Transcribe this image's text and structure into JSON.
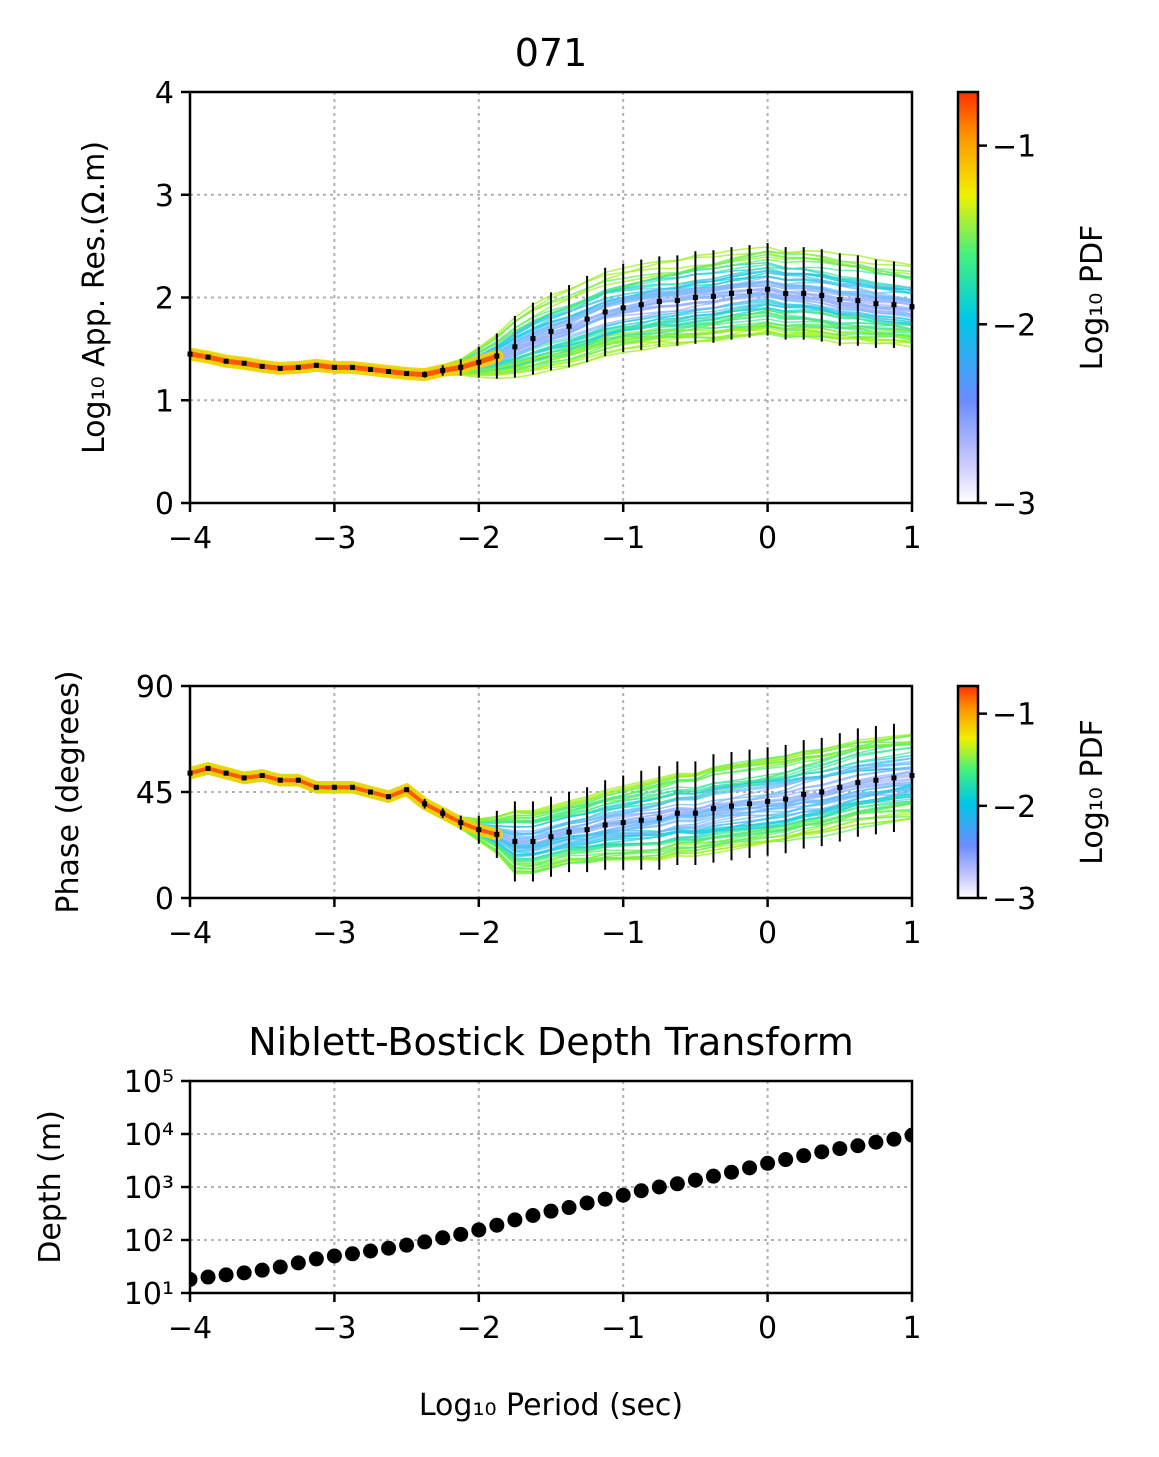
{
  "figure_title": "071",
  "colors": {
    "point": "#000000",
    "grid": "#b0b0b0"
  },
  "chart_data": [
    {
      "type": "line",
      "id": "app-res",
      "title": "",
      "xlabel": "",
      "ylabel": "Log₁₀ App. Res.(Ω.m)",
      "xlim": [
        -4,
        1
      ],
      "ylim": [
        0,
        4
      ],
      "xticks": [
        "−4",
        "−3",
        "−2",
        "−1",
        "0",
        "1"
      ],
      "yticks": [
        "0",
        "1",
        "2",
        "3",
        "4"
      ],
      "grid": true,
      "colorbar": {
        "label": "Log₁₀ PDF",
        "ticks": [
          "−1",
          "−2",
          "−3"
        ],
        "range": [
          -3,
          -0.7
        ]
      },
      "x": [
        -4.0,
        -3.875,
        -3.75,
        -3.625,
        -3.5,
        -3.375,
        -3.25,
        -3.125,
        -3.0,
        -2.875,
        -2.75,
        -2.625,
        -2.5,
        -2.375,
        -2.25,
        -2.125,
        -2.0,
        -1.875,
        -1.75,
        -1.625,
        -1.5,
        -1.375,
        -1.25,
        -1.125,
        -1.0,
        -0.875,
        -0.75,
        -0.625,
        -0.5,
        -0.375,
        -0.25,
        -0.125,
        0.0,
        0.125,
        0.25,
        0.375,
        0.5,
        0.625,
        0.75,
        0.875,
        1.0
      ],
      "y": [
        1.45,
        1.42,
        1.38,
        1.36,
        1.33,
        1.31,
        1.32,
        1.34,
        1.32,
        1.32,
        1.3,
        1.28,
        1.26,
        1.25,
        1.29,
        1.32,
        1.37,
        1.43,
        1.52,
        1.6,
        1.67,
        1.72,
        1.79,
        1.86,
        1.9,
        1.93,
        1.96,
        1.97,
        2.0,
        2.01,
        2.04,
        2.06,
        2.08,
        2.04,
        2.04,
        2.02,
        1.98,
        1.97,
        1.94,
        1.93,
        1.91
      ],
      "yerr": [
        0.01,
        0.01,
        0.01,
        0.01,
        0.01,
        0.01,
        0.01,
        0.01,
        0.01,
        0.01,
        0.01,
        0.01,
        0.02,
        0.03,
        0.05,
        0.08,
        0.15,
        0.22,
        0.3,
        0.35,
        0.38,
        0.4,
        0.42,
        0.43,
        0.43,
        0.44,
        0.44,
        0.44,
        0.45,
        0.45,
        0.45,
        0.45,
        0.45,
        0.45,
        0.45,
        0.45,
        0.45,
        0.44,
        0.43,
        0.42,
        0.42
      ]
    },
    {
      "type": "line",
      "id": "phase",
      "title": "",
      "xlabel": "",
      "ylabel": "Phase (degrees)",
      "xlim": [
        -4,
        1
      ],
      "ylim": [
        0,
        90
      ],
      "xticks": [
        "−4",
        "−3",
        "−2",
        "−1",
        "0",
        "1"
      ],
      "yticks": [
        "0",
        "45",
        "90"
      ],
      "grid": true,
      "colorbar": {
        "label": "Log₁₀ PDF",
        "ticks": [
          "−1",
          "−2",
          "−3"
        ],
        "range": [
          -3,
          -0.7
        ]
      },
      "x": [
        -4.0,
        -3.875,
        -3.75,
        -3.625,
        -3.5,
        -3.375,
        -3.25,
        -3.125,
        -3.0,
        -2.875,
        -2.75,
        -2.625,
        -2.5,
        -2.375,
        -2.25,
        -2.125,
        -2.0,
        -1.875,
        -1.75,
        -1.625,
        -1.5,
        -1.375,
        -1.25,
        -1.125,
        -1.0,
        -0.875,
        -0.75,
        -0.625,
        -0.5,
        -0.375,
        -0.25,
        -0.125,
        0.0,
        0.125,
        0.25,
        0.375,
        0.5,
        0.625,
        0.75,
        0.875,
        1.0
      ],
      "y": [
        53,
        55,
        53,
        51,
        52,
        50,
        50,
        47,
        47,
        47,
        45,
        43,
        46,
        40,
        36,
        32,
        29,
        27,
        24,
        24,
        26,
        28,
        29,
        31,
        32,
        33,
        34,
        36,
        36,
        38,
        39,
        40,
        41,
        42,
        44,
        45,
        47,
        49,
        50,
        51,
        52
      ],
      "yerr": [
        1,
        1,
        1,
        1,
        1,
        1,
        1,
        1,
        1,
        1,
        1,
        1,
        1,
        2,
        2,
        3,
        6,
        10,
        17,
        17,
        17,
        17,
        18,
        19,
        20,
        21,
        22,
        22,
        22,
        23,
        23,
        23,
        23,
        23,
        23,
        23,
        23,
        23,
        23,
        23,
        23
      ]
    },
    {
      "type": "scatter",
      "id": "depth",
      "title": "Niblett-Bostick Depth Transform",
      "xlabel": "Log₁₀ Period (sec)",
      "ylabel": "Depth (m)",
      "xlim": [
        -4,
        1
      ],
      "ylim": [
        10,
        100000
      ],
      "yscale": "log",
      "xticks": [
        "−4",
        "−3",
        "−2",
        "−1",
        "0",
        "1"
      ],
      "yticks": [
        "10¹",
        "10²",
        "10³",
        "10⁴",
        "10⁵"
      ],
      "grid": true,
      "x": [
        -4.0,
        -3.875,
        -3.75,
        -3.625,
        -3.5,
        -3.375,
        -3.25,
        -3.125,
        -3.0,
        -2.875,
        -2.75,
        -2.625,
        -2.5,
        -2.375,
        -2.25,
        -2.125,
        -2.0,
        -1.875,
        -1.75,
        -1.625,
        -1.5,
        -1.375,
        -1.25,
        -1.125,
        -1.0,
        -0.875,
        -0.75,
        -0.625,
        -0.5,
        -0.375,
        -0.25,
        -0.125,
        0.0,
        0.125,
        0.25,
        0.375,
        0.5,
        0.625,
        0.75,
        0.875,
        1.0
      ],
      "y": [
        18,
        20,
        22,
        24,
        27,
        31,
        37,
        44,
        50,
        55,
        62,
        70,
        80,
        92,
        110,
        128,
        155,
        190,
        240,
        290,
        350,
        410,
        500,
        590,
        700,
        850,
        1000,
        1150,
        1350,
        1600,
        1900,
        2300,
        2800,
        3300,
        3900,
        4600,
        5300,
        6000,
        7000,
        8000,
        9500
      ]
    }
  ]
}
